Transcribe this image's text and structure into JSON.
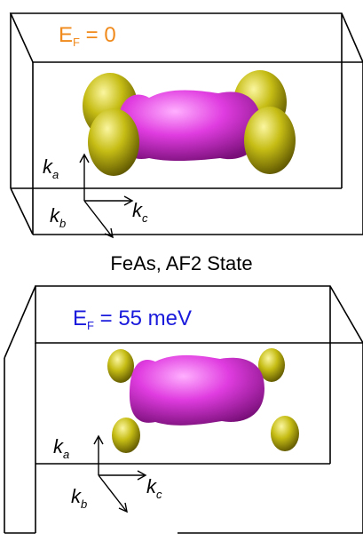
{
  "colors": {
    "orange": "#f08a1c",
    "blue": "#1a1adc",
    "electron_pocket": "#e03ce0",
    "hole_pocket": "#c6bd15"
  },
  "caption": "FeAs, AF2 State",
  "panels": [
    {
      "fermi_label": {
        "main": "E",
        "sub": "F",
        "rest": " = 0"
      },
      "axes": {
        "ka": {
          "main": "k",
          "sub": "a"
        },
        "kb": {
          "main": "k",
          "sub": "b"
        },
        "kc": {
          "main": "k",
          "sub": "c"
        }
      }
    },
    {
      "fermi_label": {
        "main": "E",
        "sub": "F",
        "rest": " = 55 meV"
      },
      "axes": {
        "ka": {
          "main": "k",
          "sub": "a"
        },
        "kb": {
          "main": "k",
          "sub": "b"
        },
        "kc": {
          "main": "k",
          "sub": "c"
        }
      }
    }
  ]
}
